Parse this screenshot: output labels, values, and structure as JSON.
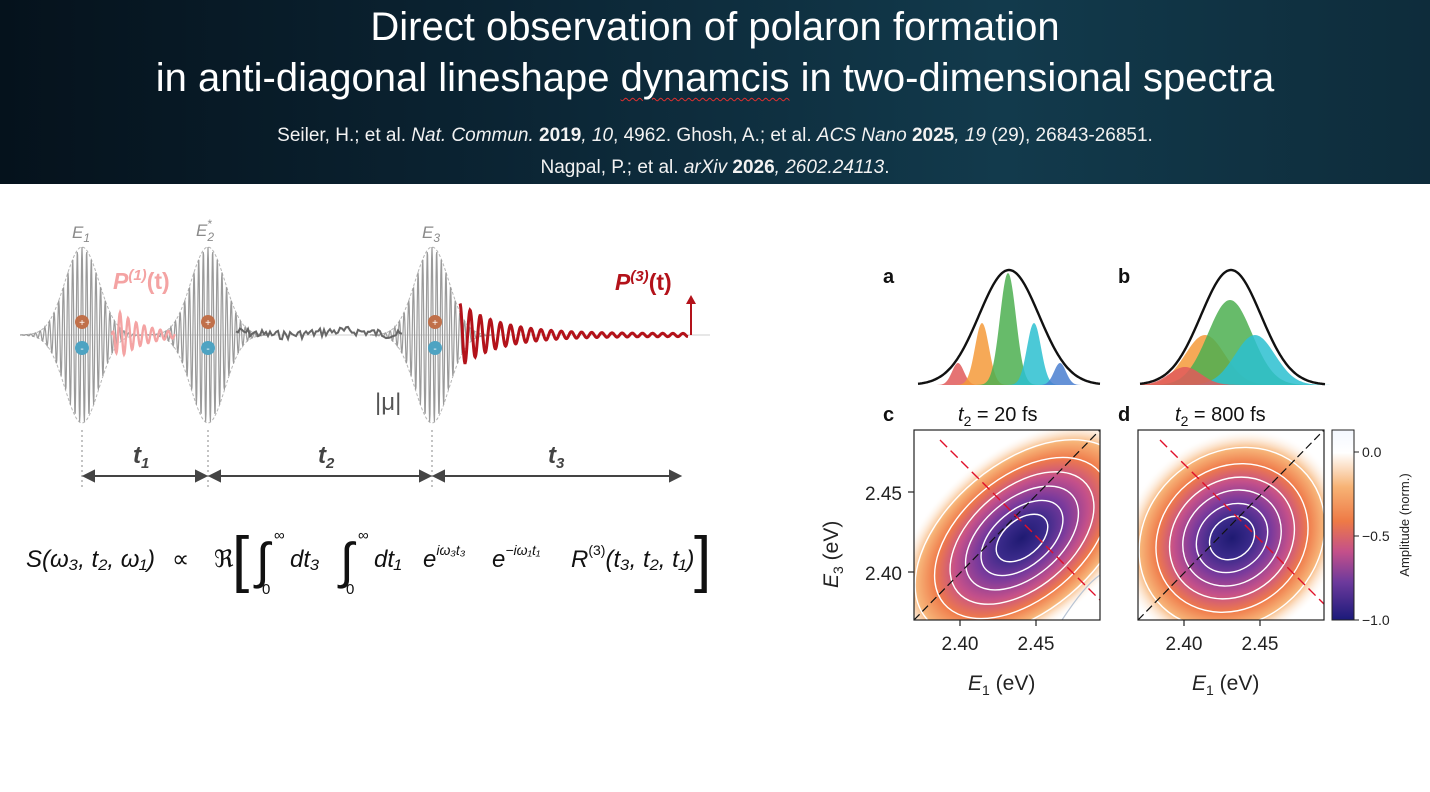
{
  "slide": {
    "title_line1": "Direct observation of polaron formation",
    "title_line2_pre": "in anti-diagonal lineshape ",
    "title_line2_err": "dynamcis",
    "title_line2_post": " in two-dimensional spectra",
    "ref1": {
      "a": "Seiler, H.; et al. ",
      "a_it": "Nat. Commun.",
      "a_sp": " ",
      "a_bd": "2019",
      "a_c": ", ",
      "a_vol": "10",
      "a_pages": ", 4962. ",
      "b": "Ghosh, A.; et al. ",
      "b_it": "ACS Nano",
      "b_sp": " ",
      "b_bd": "2025",
      "b_c": ", ",
      "b_vol": "19",
      "b_pages": " (29), 26843-26851."
    },
    "ref2": {
      "a": "Nagpal, P.; et al. ",
      "a_it": "arXiv",
      "a_sp": " ",
      "a_bd": "2026",
      "a_c": ", ",
      "a_id": "2602.24113",
      "a_end": "."
    }
  },
  "pulse_diagram": {
    "pulse_labels": [
      "E",
      "E",
      "E"
    ],
    "pulse_subs": [
      "1",
      "2",
      "3"
    ],
    "pulse2_sup": "*",
    "p1_label": "P",
    "p1_sup": "(1)",
    "p1_t": "(t)",
    "p3_label": "P",
    "p3_sup": "(3)",
    "p3_t": "(t)",
    "mu_label": "|μ|",
    "plus": "+",
    "minus": "-",
    "time_labels": [
      "t",
      "t",
      "t"
    ],
    "time_subs": [
      "1",
      "2",
      "3"
    ],
    "colors": {
      "pulse": "#9a9a9a",
      "p1": "#f4a3a3",
      "p3": "#b3121a",
      "t2_noise": "#666666",
      "plus": "#c0704a",
      "minus": "#4ea3c2"
    }
  },
  "equation": {
    "lhs": "S(ω₃, t₂, ω₁)",
    "prop": "∝",
    "re": "ℜ",
    "int_upper": "∞",
    "int_lower": "0",
    "dt3": "dt₃",
    "dt1": "dt₁",
    "e1": "e",
    "e1_exp": "iω₃t₃",
    "e2": "e",
    "e2_exp": "−iω₁t₁",
    "R": "R",
    "R_sup": "(3)",
    "R_args": "(t₃, t₂, t₁)"
  },
  "figure": {
    "panel_labels": [
      "a",
      "b",
      "c",
      "d"
    ],
    "panel_c_title_pre": "t",
    "panel_c_title_sub": "2",
    "panel_c_title_post": " = 20 fs",
    "panel_d_title_pre": "t",
    "panel_d_title_sub": "2",
    "panel_d_title_post": " = 800 fs",
    "ylabel_E": "E",
    "ylabel_sub": "3",
    "ylabel_unit": " (eV)",
    "xlabel_E": "E",
    "xlabel_sub": "1",
    "xlabel_unit": " (eV)",
    "yticks": [
      "2.45",
      "2.40"
    ],
    "xticks": [
      "2.40",
      "2.45"
    ],
    "colorbar_ticks": [
      "0.0",
      "−0.5",
      "−1.0"
    ],
    "colorbar_label": "Amplitude (norm.)",
    "lineshape_colors": [
      "#e05a5a",
      "#f59a3a",
      "#4caf50",
      "#2cc0d0",
      "#4a7fd0"
    ]
  }
}
